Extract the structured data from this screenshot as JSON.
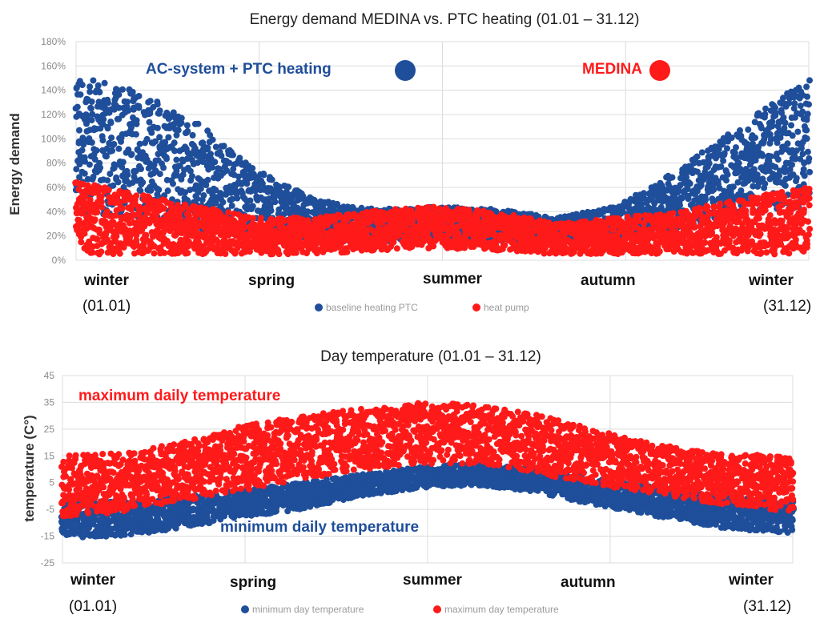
{
  "colors": {
    "blue": "#1f4e9a",
    "red": "#ff1a1a",
    "grid": "#dcdcdc"
  },
  "chart_data": [
    {
      "type": "scatter",
      "title": "Energy demand  MEDINA vs. PTC heating (01.01 – 31.12)",
      "ylabel": "Energy demand",
      "yticks": [
        "0%",
        "20%",
        "40%",
        "60%",
        "80%",
        "100%",
        "120%",
        "140%",
        "160%",
        "180%"
      ],
      "ylim": [
        0,
        180
      ],
      "grid": true,
      "season_labels": [
        "winter",
        "spring",
        "summer",
        "autumn",
        "winter"
      ],
      "date_labels": [
        "(01.01)",
        "(31.12)"
      ],
      "annotations": [
        "AC-system + PTC heating",
        "MEDINA"
      ],
      "legend": [
        "baseline heating PTC",
        "heat pump"
      ],
      "legend_position": "bottom",
      "series": [
        {
          "name": "baseline heating PTC",
          "color": "#1f4e9a",
          "x_days": [
            1,
            30,
            60,
            90,
            120,
            150,
            180,
            210,
            240,
            270,
            300,
            330,
            365
          ],
          "upper": [
            155,
            140,
            115,
            75,
            50,
            42,
            44,
            42,
            35,
            45,
            75,
            110,
            150
          ],
          "lower": [
            40,
            35,
            25,
            18,
            15,
            15,
            18,
            16,
            14,
            18,
            25,
            35,
            45
          ]
        },
        {
          "name": "heat pump",
          "color": "#ff1a1a",
          "x_days": [
            1,
            30,
            60,
            90,
            120,
            150,
            180,
            210,
            240,
            270,
            300,
            330,
            365
          ],
          "upper": [
            65,
            55,
            45,
            35,
            35,
            42,
            44,
            40,
            30,
            35,
            40,
            50,
            60
          ],
          "lower": [
            5,
            5,
            5,
            5,
            5,
            8,
            10,
            8,
            5,
            5,
            5,
            5,
            5
          ]
        }
      ]
    },
    {
      "type": "scatter",
      "title": "Day temperature  (01.01 – 31.12)",
      "ylabel": "temperature   (C°)",
      "yticks": [
        "-25",
        "-15",
        "-5",
        "5",
        "15",
        "25",
        "35",
        "45"
      ],
      "ylim": [
        -25,
        45
      ],
      "grid": true,
      "season_labels": [
        "winter",
        "spring",
        "summer",
        "autumn",
        "winter"
      ],
      "date_labels": [
        "(01.01)",
        "(31.12)"
      ],
      "annotations": [
        "maximum daily temperature",
        "minimum daily temperature"
      ],
      "legend": [
        "minimum day temperature",
        "maximum day temperature"
      ],
      "legend_position": "bottom",
      "series": [
        {
          "name": "minimum day temperature",
          "color": "#1f4e9a",
          "x_days": [
            1,
            30,
            60,
            90,
            120,
            150,
            180,
            210,
            240,
            270,
            300,
            330,
            365
          ],
          "upper": [
            -2,
            -2,
            0,
            2,
            5,
            8,
            11,
            12,
            10,
            6,
            3,
            0,
            -2
          ],
          "lower": [
            -16,
            -15,
            -12,
            -8,
            -5,
            0,
            3,
            4,
            1,
            -4,
            -8,
            -12,
            -14
          ]
        },
        {
          "name": "maximum day temperature",
          "color": "#ff1a1a",
          "x_days": [
            1,
            30,
            60,
            90,
            120,
            150,
            180,
            210,
            240,
            270,
            300,
            330,
            365
          ],
          "upper": [
            15,
            16,
            20,
            26,
            30,
            33,
            35,
            34,
            30,
            24,
            19,
            16,
            15
          ],
          "lower": [
            -8,
            -6,
            -2,
            2,
            6,
            10,
            12,
            12,
            8,
            4,
            0,
            -3,
            -6
          ]
        }
      ]
    }
  ]
}
